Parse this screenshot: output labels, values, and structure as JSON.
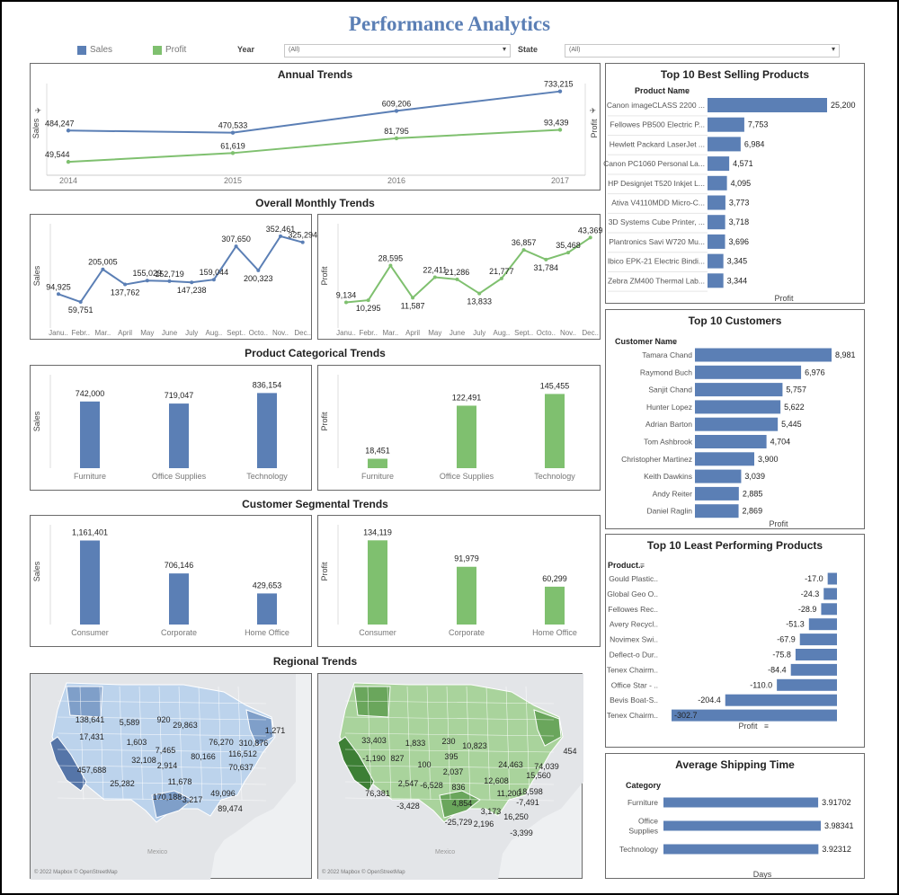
{
  "title": "Performance Analytics",
  "legend": {
    "sales": "Sales",
    "profit": "Profit",
    "sales_color": "#5b7fb5",
    "profit_color": "#7fc06f"
  },
  "filters": {
    "year_label": "Year",
    "year_value": "(All)",
    "state_label": "State",
    "state_value": "(All)"
  },
  "sections": {
    "monthly": "Overall Monthly Trends",
    "category": "Product Categorical Trends",
    "segment": "Customer Segmental Trends",
    "regional": "Regional Trends"
  },
  "map_credit": "© 2022 Mapbox © OpenStreetMap",
  "map_label": "Mexico",
  "chart_data": [
    {
      "id": "annual",
      "type": "line",
      "title": "Annual Trends",
      "x": [
        "2014",
        "2015",
        "2016",
        "2017"
      ],
      "ylabel_left": "Sales",
      "ylabel_right": "Profit",
      "series": [
        {
          "name": "Sales",
          "values": [
            484247,
            470533,
            609206,
            733215
          ]
        },
        {
          "name": "Profit",
          "values": [
            49544,
            61619,
            81795,
            93439
          ]
        }
      ],
      "labels": {
        "Sales": [
          "484,247",
          "470,533",
          "609,206",
          "733,215"
        ],
        "Profit": [
          "49,544",
          "61,619",
          "81,795",
          "93,439"
        ]
      }
    },
    {
      "id": "monthly_sales",
      "type": "line",
      "ylabel": "Sales",
      "x": [
        "Janu..",
        "Febr..",
        "Mar..",
        "April",
        "May",
        "June",
        "July",
        "Aug..",
        "Sept..",
        "Octo..",
        "Nov..",
        "Dec.."
      ],
      "values": [
        94925,
        59751,
        205005,
        137762,
        155029,
        152719,
        147238,
        159044,
        307650,
        200323,
        352461,
        325294
      ],
      "labels": [
        "94,925",
        "59,751",
        "205,005",
        "137,762",
        "155,029",
        "152,719",
        "147,238",
        "159,044",
        "307,650",
        "200,323",
        "352,461",
        "325,294"
      ]
    },
    {
      "id": "monthly_profit",
      "type": "line",
      "ylabel": "Profit",
      "x": [
        "Janu..",
        "Febr..",
        "Mar..",
        "April",
        "May",
        "June",
        "July",
        "Aug..",
        "Sept..",
        "Octo..",
        "Nov..",
        "Dec.."
      ],
      "values": [
        9134,
        10295,
        28595,
        11587,
        22411,
        21286,
        13833,
        21777,
        36857,
        31784,
        35468,
        43369
      ],
      "labels": [
        "9,134",
        "10,295",
        "28,595",
        "11,587",
        "22,411",
        "21,286",
        "13,833",
        "21,777",
        "36,857",
        "31,784",
        "35,468",
        "43,369"
      ]
    },
    {
      "id": "cat_sales",
      "type": "bar",
      "ylabel": "Sales",
      "categories": [
        "Furniture",
        "Office Supplies",
        "Technology"
      ],
      "values": [
        742000,
        719047,
        836154
      ],
      "labels": [
        "742,000",
        "719,047",
        "836,154"
      ]
    },
    {
      "id": "cat_profit",
      "type": "bar",
      "ylabel": "Profit",
      "categories": [
        "Furniture",
        "Office Supplies",
        "Technology"
      ],
      "values": [
        18451,
        122491,
        145455
      ],
      "labels": [
        "18,451",
        "122,491",
        "145,455"
      ]
    },
    {
      "id": "seg_sales",
      "type": "bar",
      "ylabel": "Sales",
      "categories": [
        "Consumer",
        "Corporate",
        "Home Office"
      ],
      "values": [
        1161401,
        706146,
        429653
      ],
      "labels": [
        "1,161,401",
        "706,146",
        "429,653"
      ]
    },
    {
      "id": "seg_profit",
      "type": "bar",
      "ylabel": "Profit",
      "categories": [
        "Consumer",
        "Corporate",
        "Home Office"
      ],
      "values": [
        134119,
        91979,
        60299
      ],
      "labels": [
        "134,119",
        "91,979",
        "60,299"
      ]
    },
    {
      "id": "top_products",
      "type": "bar",
      "title": "Top 10 Best Selling Products",
      "header": "Product Name",
      "xlabel": "Profit",
      "categories": [
        "Canon imageCLASS 2200 ...",
        "Fellowes PB500 Electric P...",
        "Hewlett Packard LaserJet ...",
        "Canon PC1060 Personal La...",
        "HP Designjet T520 Inkjet L...",
        "Ativa V4110MDD Micro-C...",
        "3D Systems Cube Printer, ...",
        "Plantronics Savi W720 Mu...",
        "Ibico EPK-21 Electric Bindi...",
        "Zebra ZM400 Thermal Lab..."
      ],
      "values": [
        25200,
        7753,
        6984,
        4571,
        4095,
        3773,
        3718,
        3696,
        3345,
        3344
      ],
      "labels": [
        "25,200",
        "7,753",
        "6,984",
        "4,571",
        "4,095",
        "3,773",
        "3,718",
        "3,696",
        "3,345",
        "3,344"
      ]
    },
    {
      "id": "top_customers",
      "type": "bar",
      "title": "Top 10 Customers",
      "header": "Customer Name",
      "xlabel": "Profit",
      "categories": [
        "Tamara Chand",
        "Raymond Buch",
        "Sanjit Chand",
        "Hunter Lopez",
        "Adrian Barton",
        "Tom Ashbrook",
        "Christopher Martinez",
        "Keith Dawkins",
        "Andy Reiter",
        "Daniel Raglin"
      ],
      "values": [
        8981,
        6976,
        5757,
        5622,
        5445,
        4704,
        3900,
        3039,
        2885,
        2869
      ],
      "labels": [
        "8,981",
        "6,976",
        "5,757",
        "5,622",
        "5,445",
        "4,704",
        "3,900",
        "3,039",
        "2,885",
        "2,869"
      ]
    },
    {
      "id": "least_products",
      "type": "bar",
      "title": "Top 10 Least Performing Products",
      "header": "Product..",
      "xlabel": "Profit",
      "categories": [
        "Gould Plastic..",
        "Global Geo O..",
        "Fellowes Rec..",
        "Avery Recycl..",
        "Novimex Swi..",
        "Deflect-o Dur..",
        "Tenex Chairm..",
        "Office Star - ..",
        "Bevis Boat-S..",
        "Tenex Chairm.."
      ],
      "values": [
        -17.0,
        -24.3,
        -28.9,
        -51.3,
        -67.9,
        -75.8,
        -84.4,
        -110.0,
        -204.4,
        -302.7
      ],
      "labels": [
        "-17.0",
        "-24.3",
        "-28.9",
        "-51.3",
        "-67.9",
        "-75.8",
        "-84.4",
        "-110.0",
        "-204.4",
        "-302.7"
      ]
    },
    {
      "id": "shipping",
      "type": "bar",
      "title": "Average Shipping Time",
      "header": "Category",
      "xlabel": "Days",
      "categories": [
        "Furniture",
        "Office\nSupplies",
        "Technology"
      ],
      "values": [
        3.91702,
        3.98341,
        3.92312
      ],
      "labels": [
        "3.91702",
        "3.98341",
        "3.92312"
      ]
    },
    {
      "id": "map_sales",
      "type": "map",
      "labels": [
        "138,641",
        "5,589",
        "920",
        "29,863",
        "17,431",
        "1,603",
        "7,465",
        "76,270",
        "310,876",
        "1,271",
        "32,108",
        "80,166",
        "116,512",
        "2,914",
        "70,637",
        "457,688",
        "25,282",
        "11,678",
        "170,188",
        "3,217",
        "49,096",
        "89,474"
      ]
    },
    {
      "id": "map_profit",
      "type": "map",
      "labels": [
        "33,403",
        "1,833",
        "230",
        "10,823",
        "-1,190",
        "827",
        "395",
        "454",
        "100",
        "24,463",
        "74,039",
        "2,037",
        "15,560",
        "2,547",
        "-6,528",
        "836",
        "12,608",
        "11,200",
        "18,598",
        "76,381",
        "-3,428",
        "4,854",
        "-7,491",
        "3,173",
        "16,250",
        "-25,729",
        "2,196",
        "-3,399"
      ]
    }
  ]
}
